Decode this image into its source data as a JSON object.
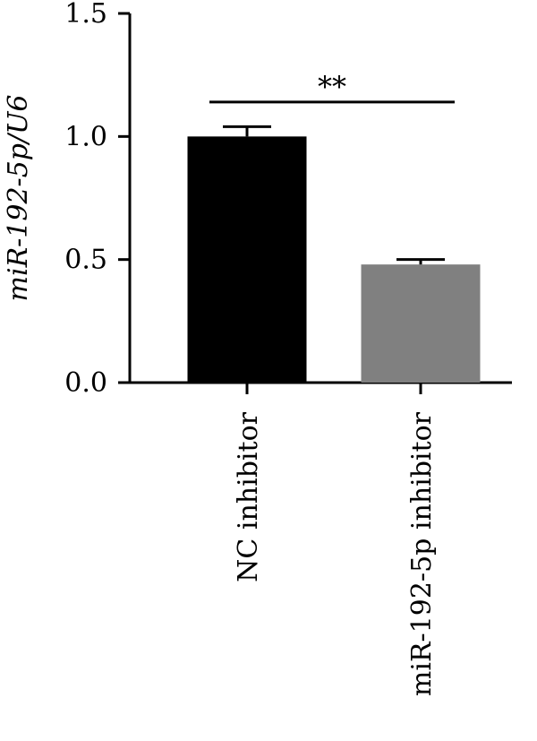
{
  "chart_data": {
    "type": "bar",
    "categories": [
      "NC inhibitor",
      "miR-192-5p inhibitor"
    ],
    "values": [
      1.0,
      0.48
    ],
    "errors": [
      0.04,
      0.02
    ],
    "bar_colors": [
      "#000000",
      "#808080"
    ],
    "title": "",
    "xlabel": "",
    "ylabel": "miR-192-5p/U6",
    "ylim": [
      0,
      1.5
    ],
    "yticks": [
      0.0,
      0.5,
      1.0,
      1.5
    ],
    "ytick_labels": [
      "0.0",
      "0.5",
      "1.0",
      "1.5"
    ],
    "grid": false,
    "annotations": [
      {
        "text": "**",
        "between": [
          "NC inhibitor",
          "miR-192-5p inhibitor"
        ],
        "y": 1.14
      }
    ]
  }
}
